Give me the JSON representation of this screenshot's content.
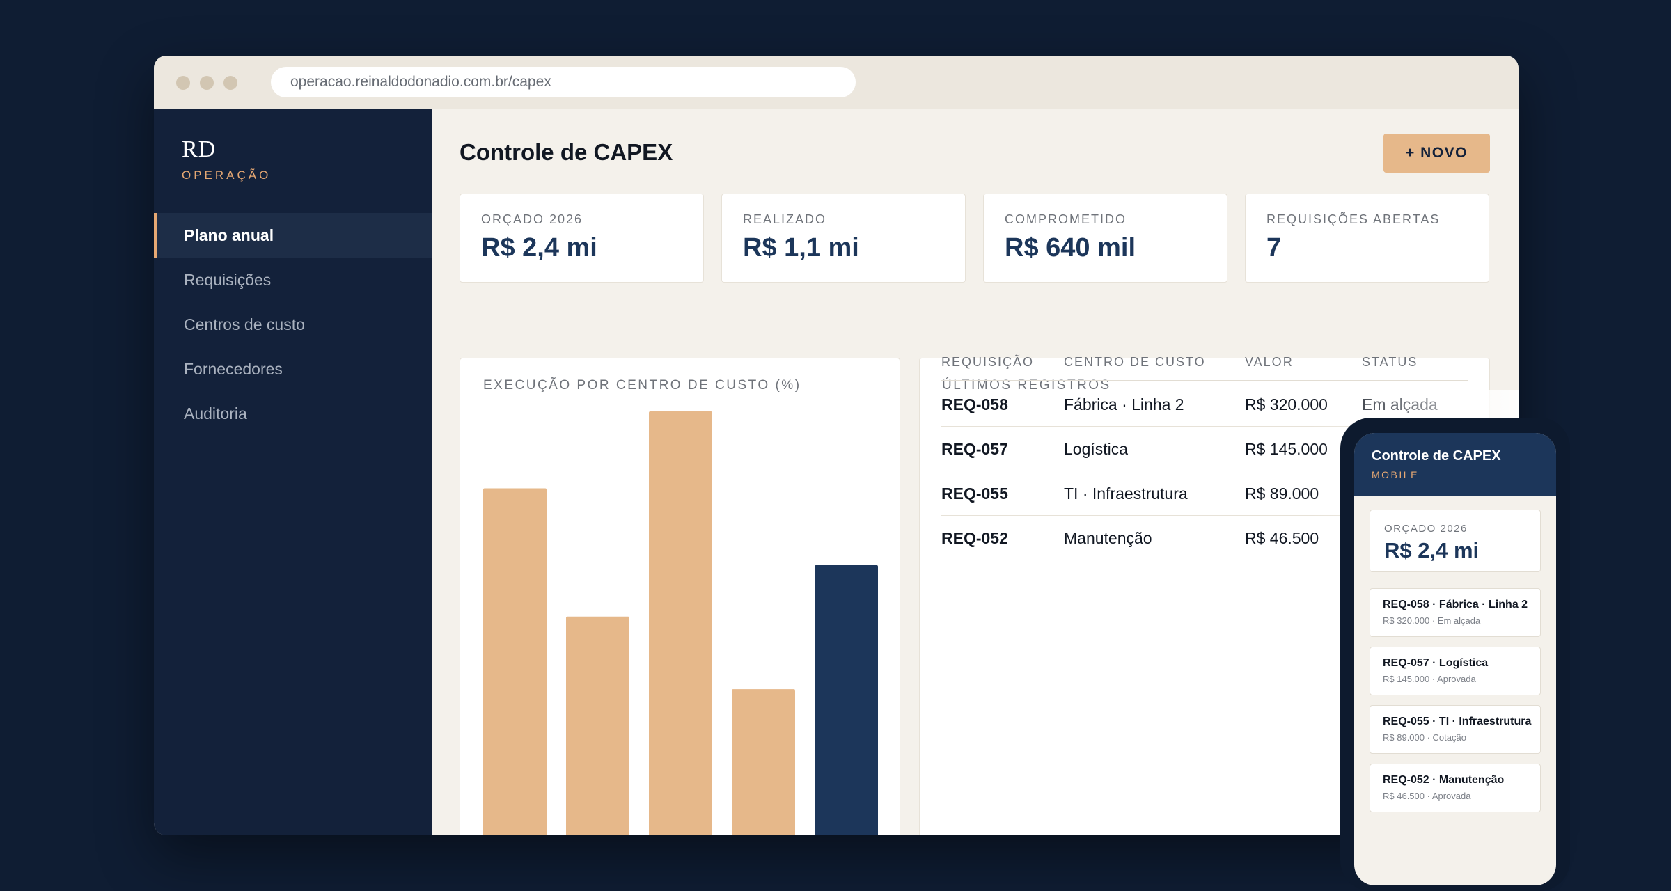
{
  "browser": {
    "url": "operacao.reinaldodonadio.com.br/capex"
  },
  "sidebar": {
    "logo": "RD",
    "logo_sub": "OPERAÇÃO",
    "items": [
      {
        "label": "Plano anual",
        "active": true
      },
      {
        "label": "Requisições",
        "active": false
      },
      {
        "label": "Centros de custo",
        "active": false
      },
      {
        "label": "Fornecedores",
        "active": false
      },
      {
        "label": "Auditoria",
        "active": false
      }
    ]
  },
  "header": {
    "title": "Controle de CAPEX",
    "new_button": "+ NOVO"
  },
  "kpis": [
    {
      "label": "ORÇADO 2026",
      "value": "R$ 2,4 mi"
    },
    {
      "label": "REALIZADO",
      "value": "R$ 1,1 mi"
    },
    {
      "label": "COMPROMETIDO",
      "value": "R$ 640 mil"
    },
    {
      "label": "REQUISIÇÕES ABERTAS",
      "value": "7"
    }
  ],
  "chart_data": {
    "type": "bar",
    "title": "EXECUÇÃO POR CENTRO DE CUSTO (%)",
    "values": [
      82,
      52,
      100,
      35,
      64
    ],
    "ylim": [
      0,
      100
    ],
    "colors": [
      "#e6b88a",
      "#e6b88a",
      "#e6b88a",
      "#e6b88a",
      "#1c365a"
    ],
    "grid": false
  },
  "table": {
    "title": "ÚLTIMOS REGISTROS",
    "columns": [
      "REQUISIÇÃO",
      "CENTRO DE CUSTO",
      "VALOR",
      "STATUS"
    ],
    "rows": [
      {
        "req": "REQ-058",
        "center": "Fábrica · Linha 2",
        "value": "R$ 320.000",
        "status": "Em alçada"
      },
      {
        "req": "REQ-057",
        "center": "Logística",
        "value": "R$ 145.000",
        "status": ""
      },
      {
        "req": "REQ-055",
        "center": "TI · Infraestrutura",
        "value": "R$ 89.000",
        "status": ""
      },
      {
        "req": "REQ-052",
        "center": "Manutenção",
        "value": "R$ 46.500",
        "status": ""
      }
    ]
  },
  "phone": {
    "title": "Controle de CAPEX",
    "subtitle": "MOBILE",
    "kpi_label": "ORÇADO 2026",
    "kpi_value": "R$ 2,4 mi",
    "items": [
      {
        "title": "REQ-058 · Fábrica · Linha 2",
        "sub": "R$ 320.000 · Em alçada"
      },
      {
        "title": "REQ-057 · Logística",
        "sub": "R$ 145.000 · Aprovada"
      },
      {
        "title": "REQ-055 · TI · Infraestrutura",
        "sub": "R$ 89.000 · Cotação"
      },
      {
        "title": "REQ-052 · Manutenção",
        "sub": "R$ 46.500 · Aprovada"
      }
    ]
  },
  "colors": {
    "background": "#0f1d33",
    "sidebar": "#13213a",
    "accent": "#e6a873",
    "bar_light": "#e6b88a",
    "bar_dark": "#1c365a",
    "kpi_value": "#1c365a"
  }
}
